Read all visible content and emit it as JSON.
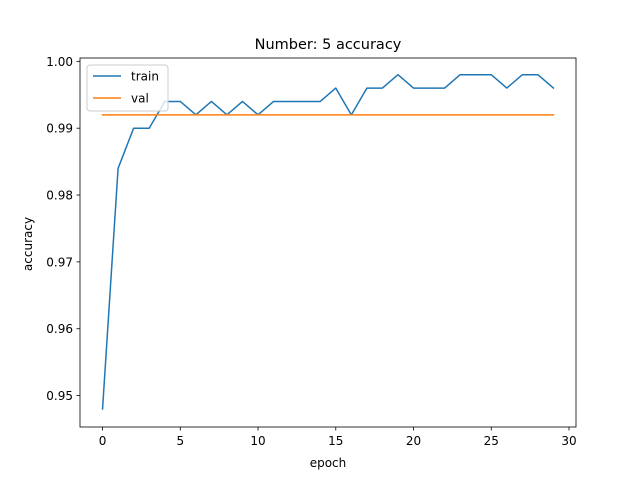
{
  "chart_data": {
    "type": "line",
    "title": "Number: 5 accuracy",
    "xlabel": "epoch",
    "ylabel": "accuracy",
    "xlim": [
      -1.45,
      30.45
    ],
    "ylim": [
      0.9453,
      1.0005
    ],
    "xticks": [
      0,
      5,
      10,
      15,
      20,
      25,
      30
    ],
    "yticks": [
      0.95,
      0.96,
      0.97,
      0.98,
      0.99,
      1.0
    ],
    "xtick_labels": [
      "0",
      "5",
      "10",
      "15",
      "20",
      "25",
      "30"
    ],
    "ytick_labels": [
      "0.95",
      "0.96",
      "0.97",
      "0.98",
      "0.99",
      "1.00"
    ],
    "grid": false,
    "legend_position": "upper-left",
    "x": [
      0,
      1,
      2,
      3,
      4,
      5,
      6,
      7,
      8,
      9,
      10,
      11,
      12,
      13,
      14,
      15,
      16,
      17,
      18,
      19,
      20,
      21,
      22,
      23,
      24,
      25,
      26,
      27,
      28,
      29
    ],
    "series": [
      {
        "name": "train",
        "color": "#1f77b4",
        "values": [
          0.948,
          0.984,
          0.99,
          0.99,
          0.994,
          0.994,
          0.992,
          0.994,
          0.992,
          0.994,
          0.992,
          0.994,
          0.994,
          0.994,
          0.994,
          0.996,
          0.992,
          0.996,
          0.996,
          0.998,
          0.996,
          0.996,
          0.996,
          0.998,
          0.998,
          0.998,
          0.996,
          0.998,
          0.998,
          0.996
        ]
      },
      {
        "name": "val",
        "color": "#ff7f0e",
        "values": [
          0.992,
          0.992,
          0.992,
          0.992,
          0.992,
          0.992,
          0.992,
          0.992,
          0.992,
          0.992,
          0.992,
          0.992,
          0.992,
          0.992,
          0.992,
          0.992,
          0.992,
          0.992,
          0.992,
          0.992,
          0.992,
          0.992,
          0.992,
          0.992,
          0.992,
          0.992,
          0.992,
          0.992,
          0.992,
          0.992
        ]
      }
    ]
  }
}
